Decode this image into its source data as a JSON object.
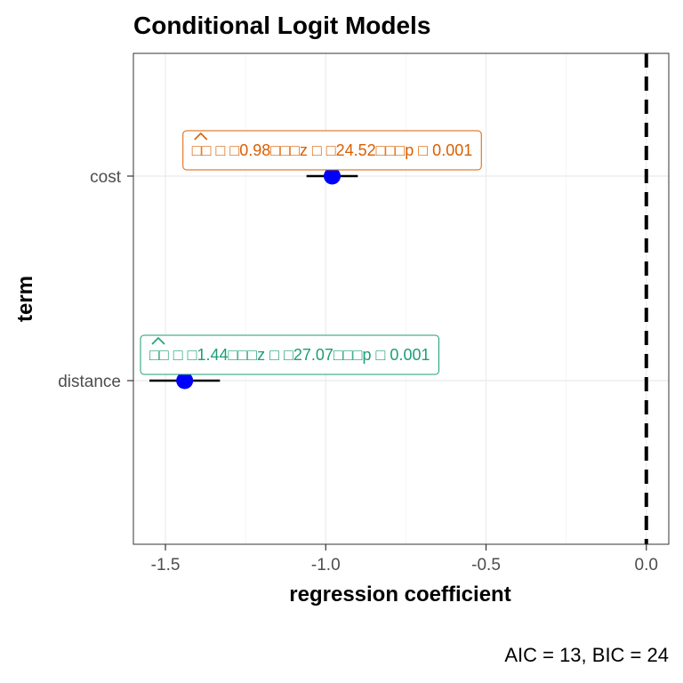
{
  "chart_data": {
    "type": "scatter",
    "title": "Conditional Logit Models",
    "xlabel": "regression coefficient",
    "ylabel": "term",
    "caption": "AIC = 13, BIC = 24",
    "xlim": [
      -1.6,
      0.07
    ],
    "x_ticks": [
      {
        "value": -1.5,
        "label": "-1.5"
      },
      {
        "value": -1.0,
        "label": "-1.0"
      },
      {
        "value": -0.5,
        "label": "-0.5"
      },
      {
        "value": 0.0,
        "label": "0.0"
      }
    ],
    "reference_line": 0,
    "categories": [
      "cost",
      "distance"
    ],
    "grid": true,
    "points": [
      {
        "term": "cost",
        "estimate": -0.98,
        "ci_low": -1.06,
        "ci_high": -0.9,
        "annotation": "□□ □ □0.98□□□z □ □24.52□□□p □ 0.001",
        "annotation_color": "#d95f02"
      },
      {
        "term": "distance",
        "estimate": -1.44,
        "ci_low": -1.55,
        "ci_high": -1.33,
        "annotation": "□□ □ □1.44□□□z □ □27.07□□□p □ 0.001",
        "annotation_color": "#1b9e77"
      }
    ],
    "point_color": "#0000ff"
  }
}
